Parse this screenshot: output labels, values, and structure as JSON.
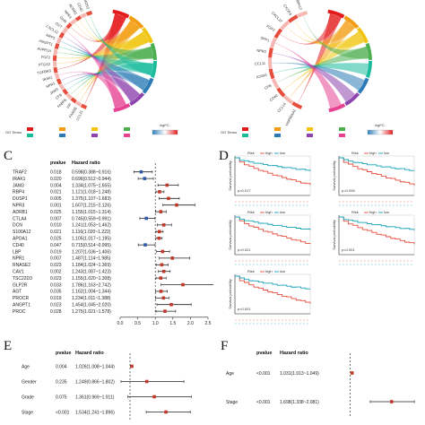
{
  "panels": {
    "a_label": "",
    "b_label": "",
    "c_label": "C",
    "d_label": "D",
    "e_label": "E",
    "f_label": "F"
  },
  "colors": {
    "red": "#e31a1c",
    "orange": "#f39c12",
    "yellow": "#f1c40f",
    "green": "#4caf50",
    "teal": "#1abc9c",
    "blue": "#2c7bb6",
    "purple": "#8e44ad",
    "pink": "#e84393",
    "forest_point": "#c0392b",
    "forest_blue": "#2e5aa8",
    "km_red": "#e74c3c",
    "km_teal": "#17a2b8"
  },
  "chord_a": {
    "genes": [
      "CCL11",
      "FAM3B",
      "VIP",
      "FABP6",
      "CFB",
      "JAM3",
      "NPR1",
      "IRAK1",
      "TGFBR3",
      "PTGS2",
      "FGF2",
      "AVPR1A",
      "ANGPT1",
      "NRP1",
      "CXCL12",
      "OXT",
      "GHR",
      "NPR3",
      "ADRB1",
      "CD40",
      "NOS3"
    ],
    "legend_title": "GO Terms",
    "logfc_label": "logFC"
  },
  "chord_b": {
    "genes": [
      "HSP90AA1",
      "CCL14",
      "CD40",
      "CFB",
      "ICAM1",
      "CCL11",
      "NPR3",
      "SPP1",
      "FGF2",
      "CXCL12",
      "CXCR4",
      "S100A12"
    ],
    "legend_title": "GO Terms",
    "logfc_label": "logFC"
  },
  "forest_c": {
    "col_pvalue": "pvalue",
    "col_hr": "Hazard ratio",
    "xlabel": "Hazard ratio",
    "ticks": [
      "0.0",
      "0.5",
      "1.0",
      "1.5",
      "2.0",
      "2.5"
    ],
    "xlim": [
      0,
      2.5
    ],
    "rows": [
      {
        "gene": "TRAF2",
        "p": "0.018",
        "hr_text": "0.598(0.388~0.916)",
        "hr": 0.598,
        "lo": 0.388,
        "hi": 0.916
      },
      {
        "gene": "IRAK1",
        "p": "0.020",
        "hr_text": "0.696(0.512~0.944)",
        "hr": 0.696,
        "lo": 0.512,
        "hi": 0.944
      },
      {
        "gene": "JAM3",
        "p": "0.004",
        "hr_text": "1.334(1.075~1.655)",
        "hr": 1.334,
        "lo": 1.075,
        "hi": 1.655
      },
      {
        "gene": "RBP4",
        "p": "0.021",
        "hr_text": "1.121(1.018~1.248)",
        "hr": 1.121,
        "lo": 1.018,
        "hi": 1.248
      },
      {
        "gene": "DUSP1",
        "p": "0.005",
        "hr_text": "1.375(1.107~1.683)",
        "hr": 1.375,
        "lo": 1.107,
        "hi": 1.683
      },
      {
        "gene": "NPR3",
        "p": "0.001",
        "hr_text": "1.607(1.215~2.126)",
        "hr": 1.607,
        "lo": 1.215,
        "hi": 2.126
      },
      {
        "gene": "ADRB1",
        "p": "0.025",
        "hr_text": "1.155(1.015~1.314)",
        "hr": 1.155,
        "lo": 1.015,
        "hi": 1.314
      },
      {
        "gene": "CTLA4",
        "p": "0.007",
        "hr_text": "0.745(0.559~0.991)",
        "hr": 0.745,
        "lo": 0.559,
        "hi": 0.991
      },
      {
        "gene": "DCN",
        "p": "0.010",
        "hr_text": "1.241(1.053~1.462)",
        "hr": 1.241,
        "lo": 1.053,
        "hi": 1.462
      },
      {
        "gene": "S100A12",
        "p": "0.021",
        "hr_text": "1.116(1.020~1.222)",
        "hr": 1.116,
        "lo": 1.02,
        "hi": 1.222
      },
      {
        "gene": "APOA1",
        "p": "0.025",
        "hr_text": "1.105(1.017~1.195)",
        "hr": 1.105,
        "lo": 1.017,
        "hi": 1.195
      },
      {
        "gene": "CD40",
        "p": "0.047",
        "hr_text": "0.715(0.514~0.995)",
        "hr": 0.715,
        "lo": 0.514,
        "hi": 0.995
      },
      {
        "gene": "LBP",
        "p": "0.019",
        "hr_text": "1.207(1.036~1.406)",
        "hr": 1.207,
        "lo": 1.036,
        "hi": 1.406
      },
      {
        "gene": "NPR1",
        "p": "0.007",
        "hr_text": "1.487(1.114~1.985)",
        "hr": 1.487,
        "lo": 1.114,
        "hi": 1.985
      },
      {
        "gene": "RNASE2",
        "p": "0.023",
        "hr_text": "1.184(1.024~1.369)",
        "hr": 1.184,
        "lo": 1.024,
        "hi": 1.369
      },
      {
        "gene": "CAV1",
        "p": "0.002",
        "hr_text": "1.243(1.087~1.423)",
        "hr": 1.243,
        "lo": 1.087,
        "hi": 1.423
      },
      {
        "gene": "TSC22D3",
        "p": "0.023",
        "hr_text": "1.155(1.020~1.308)",
        "hr": 1.155,
        "lo": 1.02,
        "hi": 1.308
      },
      {
        "gene": "GLP2R",
        "p": "0.033",
        "hr_text": "1.786(1.163~2.742)",
        "hr": 1.786,
        "lo": 1.163,
        "hi": 2.742
      },
      {
        "gene": "AGT",
        "p": "0.035",
        "hr_text": "1.162(1.004~1.344)",
        "hr": 1.162,
        "lo": 1.004,
        "hi": 1.344
      },
      {
        "gene": "PROCR",
        "p": "0.019",
        "hr_text": "1.234(1.011~1.388)",
        "hr": 1.234,
        "lo": 1.011,
        "hi": 1.388
      },
      {
        "gene": "ANGPT1",
        "p": "0.023",
        "hr_text": "1.454(1.045~2.020)",
        "hr": 1.454,
        "lo": 1.045,
        "hi": 2.02
      },
      {
        "gene": "PROC",
        "p": "0.028",
        "hr_text": "1.275(1.021~1.578)",
        "hr": 1.275,
        "lo": 1.021,
        "hi": 1.578
      }
    ]
  },
  "km_d": {
    "legend_strata": "Risk",
    "legend_high": "high",
    "legend_low": "low",
    "ylabel": "Survival probability",
    "plots": [
      {
        "p": "p=0.017"
      },
      {
        "p": "p=0.008"
      },
      {
        "p": "p=0.021"
      },
      {
        "p": "p<0.001"
      },
      {
        "p": "p<0.001"
      }
    ]
  },
  "forest_e": {
    "col_pvalue": "pvalue",
    "col_hr": "Hazard ratio",
    "rows": [
      {
        "label": "Age",
        "p": "0.004",
        "hr_text": "1.026(1.008~1.044)",
        "hr": 1.026,
        "lo": 1.008,
        "hi": 1.044
      },
      {
        "label": "Gender",
        "p": "0.235",
        "hr_text": "1.249(0.866~1.802)",
        "hr": 1.249,
        "lo": 0.866,
        "hi": 1.802
      },
      {
        "label": "Grade",
        "p": "0.075",
        "hr_text": "1.361(0.969~1.911)",
        "hr": 1.361,
        "lo": 0.969,
        "hi": 1.911
      },
      {
        "label": "Stage",
        "p": "<0.001",
        "hr_text": "1.534(1.241~1.896)",
        "hr": 1.534,
        "lo": 1.241,
        "hi": 1.896
      }
    ]
  },
  "forest_f": {
    "col_pvalue": "pvalue",
    "col_hr": "Hazard ratio",
    "rows": [
      {
        "label": "Age",
        "p": "<0.001",
        "hr_text": "1.031(1.013~1.049)",
        "hr": 1.031,
        "lo": 1.013,
        "hi": 1.049
      },
      {
        "label": "Stage",
        "p": "<0.001",
        "hr_text": "1.698(1.338~2.081)",
        "hr": 1.698,
        "lo": 1.338,
        "hi": 2.081
      }
    ]
  }
}
